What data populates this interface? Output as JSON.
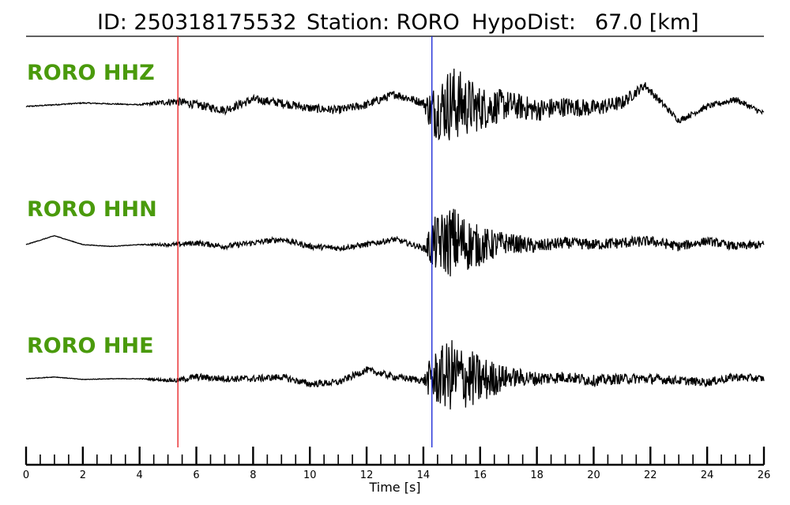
{
  "title": {
    "id_label": "ID: 250318175532",
    "station_label": "Station: RORO",
    "dist_label": "HypoDist:",
    "dist_value": "67.0 [km]"
  },
  "colors": {
    "label": "#4a9a0c",
    "p_pick": "#e8282a",
    "s_pick": "#2230d8",
    "trace": "#000000"
  },
  "chart_data": {
    "type": "line",
    "title": "ID: 250318175532   Station: RORO   HypoDist:    67.0 [km]",
    "xlabel": "Time [s]",
    "ylabel": "",
    "xlim": [
      0,
      26
    ],
    "xticks": [
      0,
      2,
      4,
      6,
      8,
      10,
      12,
      14,
      16,
      18,
      20,
      22,
      24,
      26
    ],
    "grid": false,
    "picks": [
      {
        "phase": "P",
        "time": 5.35,
        "color": "#e8282a"
      },
      {
        "phase": "S",
        "time": 14.3,
        "color": "#2230d8"
      }
    ],
    "series": [
      {
        "name": "RORO HHZ",
        "x": [
          0,
          2,
          4,
          5.3,
          6,
          7,
          8,
          9,
          10,
          11,
          12,
          13,
          14,
          14.3,
          15,
          16,
          17,
          18,
          19,
          20,
          21,
          21.8,
          23,
          24,
          25,
          26
        ],
        "y": [
          0,
          0.1,
          0.05,
          0.15,
          0.05,
          -0.1,
          0.2,
          0.1,
          -0.05,
          -0.1,
          0.05,
          0.35,
          0.1,
          -0.15,
          0.1,
          -0.05,
          0.05,
          -0.1,
          0.0,
          -0.05,
          0.1,
          0.6,
          -0.4,
          0.0,
          0.2,
          -0.2
        ],
        "noise": [
          0.02,
          0.02,
          0.02,
          0.15,
          0.15,
          0.15,
          0.15,
          0.15,
          0.15,
          0.15,
          0.15,
          0.15,
          0.15,
          0.9,
          1.4,
          0.8,
          0.5,
          0.4,
          0.35,
          0.3,
          0.25,
          0.15,
          0.1,
          0.1,
          0.1,
          0.1
        ]
      },
      {
        "name": "RORO HHN",
        "x": [
          0,
          1,
          2,
          3,
          4,
          5.3,
          6,
          7,
          8,
          9,
          10,
          11,
          12,
          13,
          14,
          14.3,
          15,
          16,
          17,
          18,
          19,
          20,
          21,
          22,
          23,
          24,
          25,
          26
        ],
        "y": [
          0,
          0.25,
          0.0,
          -0.05,
          0.0,
          0.0,
          0.05,
          -0.05,
          0.05,
          0.15,
          -0.05,
          -0.1,
          0.0,
          0.15,
          -0.1,
          0.0,
          0.1,
          -0.05,
          0.05,
          -0.05,
          0.05,
          0.0,
          0.05,
          0.1,
          -0.05,
          0.1,
          -0.05,
          0.0
        ],
        "noise": [
          0.01,
          0.01,
          0.01,
          0.01,
          0.01,
          0.08,
          0.1,
          0.1,
          0.1,
          0.1,
          0.1,
          0.1,
          0.1,
          0.1,
          0.1,
          0.9,
          1.3,
          0.7,
          0.35,
          0.25,
          0.2,
          0.2,
          0.2,
          0.18,
          0.18,
          0.15,
          0.15,
          0.15
        ]
      },
      {
        "name": "RORO HHE",
        "x": [
          0,
          1,
          2,
          3,
          4,
          5.3,
          6,
          7,
          8,
          9,
          10,
          11,
          12,
          13,
          14,
          14.3,
          15,
          16,
          17,
          18,
          19,
          20,
          21,
          22,
          23,
          24,
          25,
          26
        ],
        "y": [
          0,
          0.05,
          -0.02,
          0.0,
          0.0,
          -0.05,
          0.05,
          0.0,
          0.0,
          0.05,
          -0.15,
          -0.1,
          0.25,
          0.05,
          -0.05,
          0.0,
          0.1,
          -0.05,
          0.05,
          0.0,
          0.05,
          -0.05,
          0.0,
          0.0,
          -0.05,
          -0.1,
          0.05,
          0.0
        ],
        "noise": [
          0.01,
          0.01,
          0.01,
          0.01,
          0.01,
          0.08,
          0.12,
          0.12,
          0.12,
          0.12,
          0.12,
          0.12,
          0.12,
          0.12,
          0.12,
          0.9,
          1.3,
          0.9,
          0.35,
          0.25,
          0.2,
          0.2,
          0.18,
          0.18,
          0.15,
          0.15,
          0.15,
          0.12
        ]
      }
    ]
  }
}
